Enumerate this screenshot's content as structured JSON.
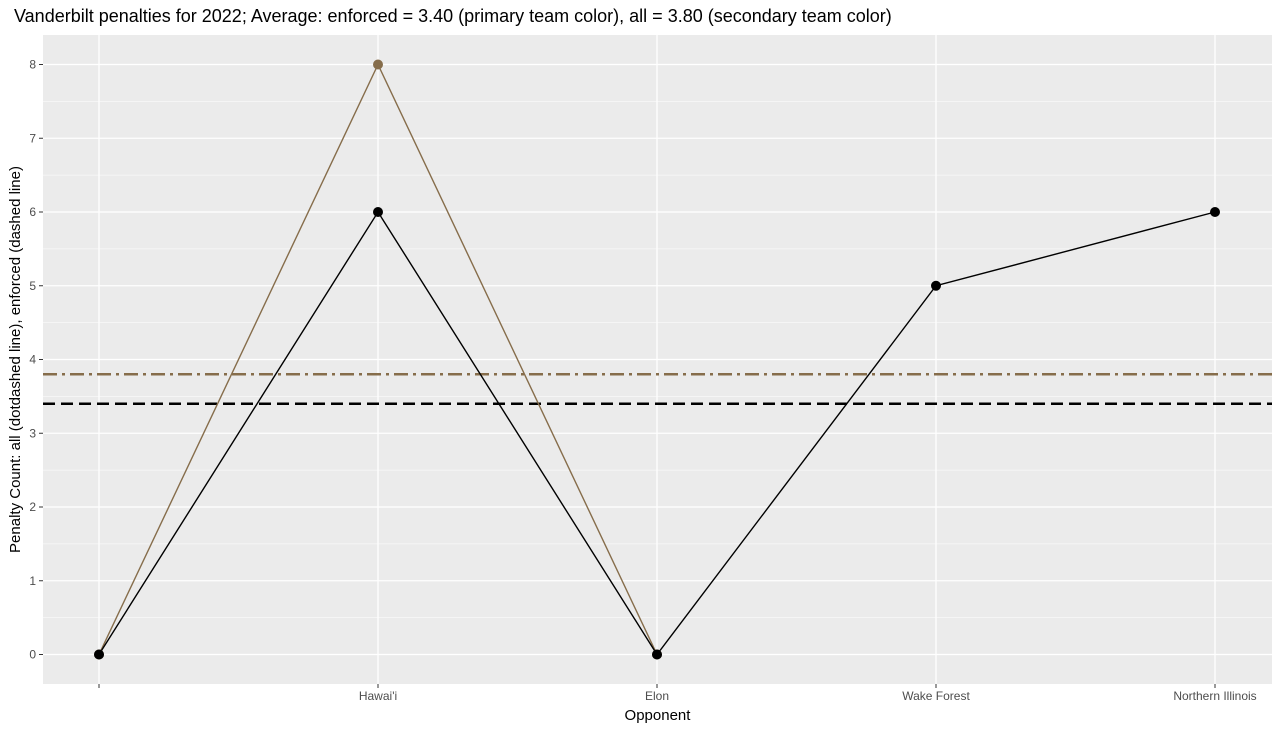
{
  "chart_data": {
    "type": "line",
    "title": "Vanderbilt penalties for 2022; Average: enforced = 3.40 (primary team color), all = 3.80 (secondary team color)",
    "xlabel": "Opponent",
    "ylabel": "Penalty Count: all (dotdashed line), enforced (dashed line)",
    "categories": [
      "",
      "Hawai'i",
      "Elon",
      "Wake Forest",
      "Northern Illinois"
    ],
    "ylim": [
      -0.4,
      8.4
    ],
    "yticks": [
      0,
      1,
      2,
      3,
      4,
      5,
      6,
      7,
      8
    ],
    "series": [
      {
        "key": "all",
        "values": [
          0,
          8,
          0,
          null,
          null
        ],
        "color": "#866D4B"
      },
      {
        "key": "enforced",
        "values": [
          0,
          6,
          0,
          5,
          6
        ],
        "color": "#000000"
      }
    ],
    "reference_lines": [
      {
        "key": "all-average",
        "value": 3.8,
        "color": "#866D4B",
        "style": "dotdash"
      },
      {
        "key": "enforced-average",
        "value": 3.4,
        "color": "#000000",
        "style": "dashed"
      }
    ],
    "grid": true,
    "panel_background": "#EBEBEB",
    "grid_color": "#FFFFFF"
  }
}
